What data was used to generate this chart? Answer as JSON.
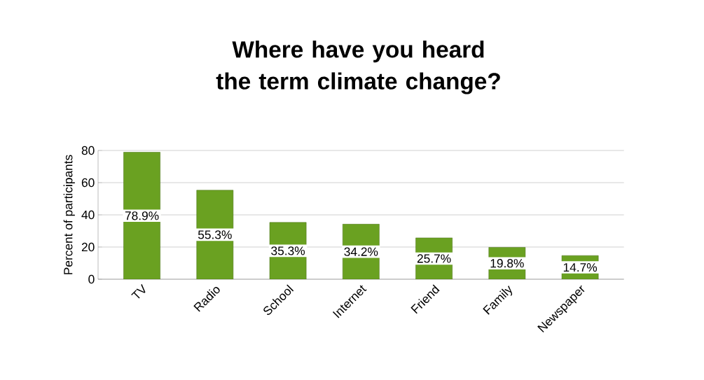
{
  "chart_data": {
    "type": "bar",
    "title": "Where have you heard the term climate change?",
    "ylabel": "Percent of participants",
    "categories": [
      "TV",
      "Radio",
      "School",
      "Internet",
      "Friend",
      "Family",
      "Newspaper"
    ],
    "values": [
      78.9,
      55.3,
      35.3,
      34.2,
      25.7,
      19.8,
      14.7
    ],
    "value_labels": [
      "78.9%",
      "55.3%",
      "35.3%",
      "34.2%",
      "25.7%",
      "19.8%",
      "14.7%"
    ],
    "color": "#6aa121",
    "ylim": [
      0,
      80
    ],
    "yticks": [
      0,
      20,
      40,
      60,
      80
    ],
    "grid": "y"
  }
}
